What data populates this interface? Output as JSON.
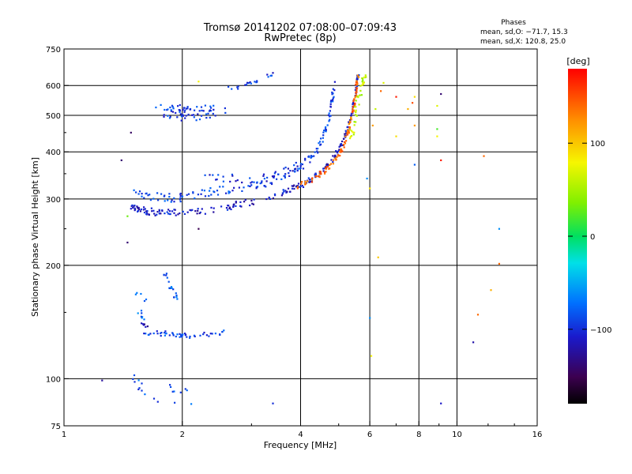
{
  "chart_data": {
    "type": "scatter",
    "title": "Tromsø 20141202 07:08:00–07:09:43",
    "subtitle": "RwPretec (8p)",
    "xlabel": "Frequency [MHz]",
    "ylabel": "Stationary phase Virtual Height [km]",
    "xscale": "log2",
    "yscale": "log",
    "xlim": [
      1,
      16
    ],
    "ylim": [
      75,
      750
    ],
    "xticks": [
      "1",
      "2",
      "4",
      "6",
      "8",
      "10",
      "16"
    ],
    "yticks": [
      "75",
      "100",
      "200",
      "300",
      "400",
      "500",
      "600",
      "750"
    ],
    "x_gridlines": [
      2,
      4,
      6,
      8,
      10
    ],
    "y_gridlines": [
      100,
      200,
      300,
      400,
      500,
      600
    ],
    "phase_stats": {
      "title": "Phases",
      "line_o": "mean, sd,O: −71.7, 15.3",
      "line_x": "mean, sd,X: 120.8, 25.0"
    },
    "colorbar": {
      "label": "[deg]",
      "range": [
        -180,
        180
      ],
      "ticks": [
        "100",
        "0",
        "−100"
      ],
      "tick_values": [
        100,
        0,
        -100
      ]
    },
    "traces": [
      {
        "freq_mhz": [
          1.48,
          1.55,
          1.65,
          1.8,
          2.0,
          2.3,
          2.7,
          3.2,
          3.7,
          4.0,
          4.3,
          4.6,
          4.9,
          5.1,
          5.3,
          5.45,
          5.55,
          5.6
        ],
        "height_km": [
          285,
          280,
          278,
          276,
          276,
          280,
          288,
          300,
          315,
          325,
          340,
          360,
          390,
          420,
          470,
          530,
          600,
          640
        ],
        "phase_deg": -110,
        "spread_height": 6,
        "spread_freq": 0.03,
        "points_per_segment": 14
      },
      {
        "freq_mhz": [
          1.5,
          1.7,
          1.9,
          2.1,
          2.4,
          2.8,
          3.2,
          3.6,
          4.0,
          4.3,
          4.55,
          4.7,
          4.8,
          4.9
        ],
        "height_km": [
          310,
          305,
          302,
          305,
          315,
          320,
          330,
          345,
          365,
          390,
          430,
          480,
          540,
          620
        ],
        "phase_deg": -90,
        "spread_height": 8,
        "spread_freq": 0.04,
        "points_per_segment": 12
      },
      {
        "freq_mhz": [
          2.2,
          2.6,
          3.0,
          3.4,
          3.7,
          4.0
        ],
        "height_km": [
          345,
          340,
          335,
          345,
          355,
          370
        ],
        "phase_deg": -100,
        "spread_height": 10,
        "spread_freq": 0.04,
        "points_per_segment": 8
      },
      {
        "freq_mhz": [
          3.9,
          4.3,
          4.6,
          4.85,
          5.05,
          5.2,
          5.3,
          5.4,
          5.5,
          5.55,
          5.6
        ],
        "height_km": [
          325,
          340,
          355,
          375,
          400,
          430,
          460,
          500,
          550,
          600,
          640
        ],
        "phase_deg": 140,
        "spread_height": 6,
        "spread_freq": 0.03,
        "points_per_segment": 11
      },
      {
        "freq_mhz": [
          5.3,
          5.45,
          5.55,
          5.65,
          5.75,
          5.85
        ],
        "height_km": [
          420,
          470,
          520,
          570,
          610,
          640
        ],
        "phase_deg": 60,
        "spread_height": 10,
        "spread_freq": 0.06,
        "points_per_segment": 8
      },
      {
        "freq_mhz": [
          1.78,
          1.85,
          1.95,
          2.05,
          2.15,
          2.3,
          2.5
        ],
        "height_km": [
          500,
          520,
          505,
          495,
          510,
          505,
          515
        ],
        "phase_deg": -95,
        "spread_height": 25,
        "spread_freq": 0.1,
        "points_per_segment": 12
      },
      {
        "freq_mhz": [
          2.6,
          2.8,
          3.0,
          3.2,
          3.4
        ],
        "height_km": [
          590,
          595,
          610,
          625,
          645
        ],
        "phase_deg": -95,
        "spread_height": 6,
        "spread_freq": 0.03,
        "points_per_segment": 5
      },
      {
        "freq_mhz": [
          1.6,
          1.75,
          1.9,
          2.05,
          2.3,
          2.55
        ],
        "height_km": [
          130,
          132,
          131,
          130,
          131,
          133
        ],
        "phase_deg": -90,
        "spread_height": 2,
        "spread_freq": 0.03,
        "points_per_segment": 10
      },
      {
        "freq_mhz": [
          1.55,
          1.65
        ],
        "height_km": [
          140,
          138
        ],
        "phase_deg": -115,
        "spread_height": 2,
        "spread_freq": 0.02,
        "points_per_segment": 6
      },
      {
        "freq_mhz": [
          1.8,
          1.85,
          1.9,
          1.95
        ],
        "height_km": [
          190,
          178,
          168,
          162
        ],
        "phase_deg": -80,
        "spread_height": 3,
        "spread_freq": 0.02,
        "points_per_segment": 6
      },
      {
        "freq_mhz": [
          1.5,
          1.6,
          1.55,
          1.6
        ],
        "height_km": [
          180,
          160,
          150,
          145
        ],
        "phase_deg": -75,
        "spread_height": 4,
        "spread_freq": 0.03,
        "points_per_segment": 4
      },
      {
        "freq_mhz": [
          1.45,
          1.6,
          1.75,
          1.9,
          2.05
        ],
        "height_km": [
          100,
          95,
          92,
          90,
          88
        ],
        "phase_deg": -85,
        "spread_height": 6,
        "spread_freq": 0.1,
        "points_per_segment": 5
      }
    ],
    "isolated_points": [
      {
        "freq_mhz": 1.25,
        "height_km": 99,
        "phase_deg": -125
      },
      {
        "freq_mhz": 1.4,
        "height_km": 380,
        "phase_deg": -140
      },
      {
        "freq_mhz": 1.45,
        "height_km": 230,
        "phase_deg": -140
      },
      {
        "freq_mhz": 1.45,
        "height_km": 270,
        "phase_deg": 30
      },
      {
        "freq_mhz": 1.48,
        "height_km": 450,
        "phase_deg": -145
      },
      {
        "freq_mhz": 2.2,
        "height_km": 250,
        "phase_deg": -150
      },
      {
        "freq_mhz": 2.2,
        "height_km": 615,
        "phase_deg": 80
      },
      {
        "freq_mhz": 3.4,
        "height_km": 86,
        "phase_deg": -100
      },
      {
        "freq_mhz": 5.9,
        "height_km": 340,
        "phase_deg": -60
      },
      {
        "freq_mhz": 6.0,
        "height_km": 320,
        "phase_deg": 90
      },
      {
        "freq_mhz": 6.0,
        "height_km": 145,
        "phase_deg": -60
      },
      {
        "freq_mhz": 6.05,
        "height_km": 115,
        "phase_deg": 80
      },
      {
        "freq_mhz": 6.1,
        "height_km": 470,
        "phase_deg": 120
      },
      {
        "freq_mhz": 6.2,
        "height_km": 520,
        "phase_deg": 60
      },
      {
        "freq_mhz": 6.3,
        "height_km": 210,
        "phase_deg": 100
      },
      {
        "freq_mhz": 6.4,
        "height_km": 580,
        "phase_deg": 140
      },
      {
        "freq_mhz": 6.5,
        "height_km": 610,
        "phase_deg": 70
      },
      {
        "freq_mhz": 7.0,
        "height_km": 560,
        "phase_deg": 170
      },
      {
        "freq_mhz": 7.0,
        "height_km": 440,
        "phase_deg": 90
      },
      {
        "freq_mhz": 7.5,
        "height_km": 520,
        "phase_deg": 110
      },
      {
        "freq_mhz": 7.7,
        "height_km": 540,
        "phase_deg": 150
      },
      {
        "freq_mhz": 7.8,
        "height_km": 560,
        "phase_deg": 90
      },
      {
        "freq_mhz": 7.8,
        "height_km": 470,
        "phase_deg": 120
      },
      {
        "freq_mhz": 7.8,
        "height_km": 370,
        "phase_deg": -80
      },
      {
        "freq_mhz": 8.9,
        "height_km": 530,
        "phase_deg": 70
      },
      {
        "freq_mhz": 8.9,
        "height_km": 460,
        "phase_deg": 20
      },
      {
        "freq_mhz": 8.9,
        "height_km": 440,
        "phase_deg": 80
      },
      {
        "freq_mhz": 9.1,
        "height_km": 570,
        "phase_deg": -140
      },
      {
        "freq_mhz": 9.1,
        "height_km": 380,
        "phase_deg": 170
      },
      {
        "freq_mhz": 9.1,
        "height_km": 86,
        "phase_deg": -110
      },
      {
        "freq_mhz": 11.0,
        "height_km": 125,
        "phase_deg": -120
      },
      {
        "freq_mhz": 11.3,
        "height_km": 148,
        "phase_deg": 140
      },
      {
        "freq_mhz": 11.7,
        "height_km": 390,
        "phase_deg": 140
      },
      {
        "freq_mhz": 12.2,
        "height_km": 172,
        "phase_deg": 110
      },
      {
        "freq_mhz": 12.8,
        "height_km": 250,
        "phase_deg": -60
      },
      {
        "freq_mhz": 12.8,
        "height_km": 202,
        "phase_deg": 140
      }
    ]
  }
}
